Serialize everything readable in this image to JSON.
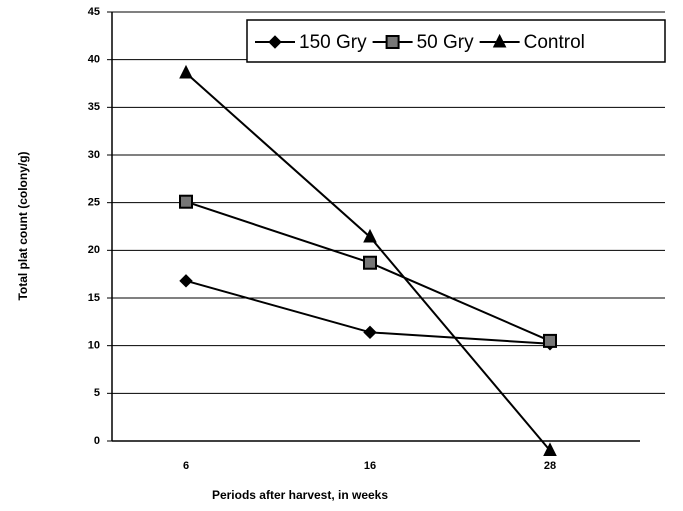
{
  "chart_data": {
    "type": "line",
    "x_label": "Periods after harvest, in weeks",
    "y_label": "Total plat count (colony/g)",
    "categories": [
      "6",
      "16",
      "28"
    ],
    "series": [
      {
        "name": "150 Gry",
        "color": "#000000",
        "marker": "diamond",
        "values": [
          16.8,
          11.4,
          10.2
        ]
      },
      {
        "name": "50 Gry",
        "color": "#000000",
        "marker": "square",
        "values": [
          25.1,
          18.7,
          10.5
        ]
      },
      {
        "name": "Control",
        "color": "#000000",
        "marker": "triangle",
        "values": [
          38.6,
          21.4,
          -1
        ]
      }
    ],
    "ylim": [
      0,
      45
    ],
    "yticks": [
      0,
      5,
      10,
      15,
      20,
      25,
      30,
      35,
      40,
      45
    ],
    "grid": true,
    "legend": "top-right"
  }
}
